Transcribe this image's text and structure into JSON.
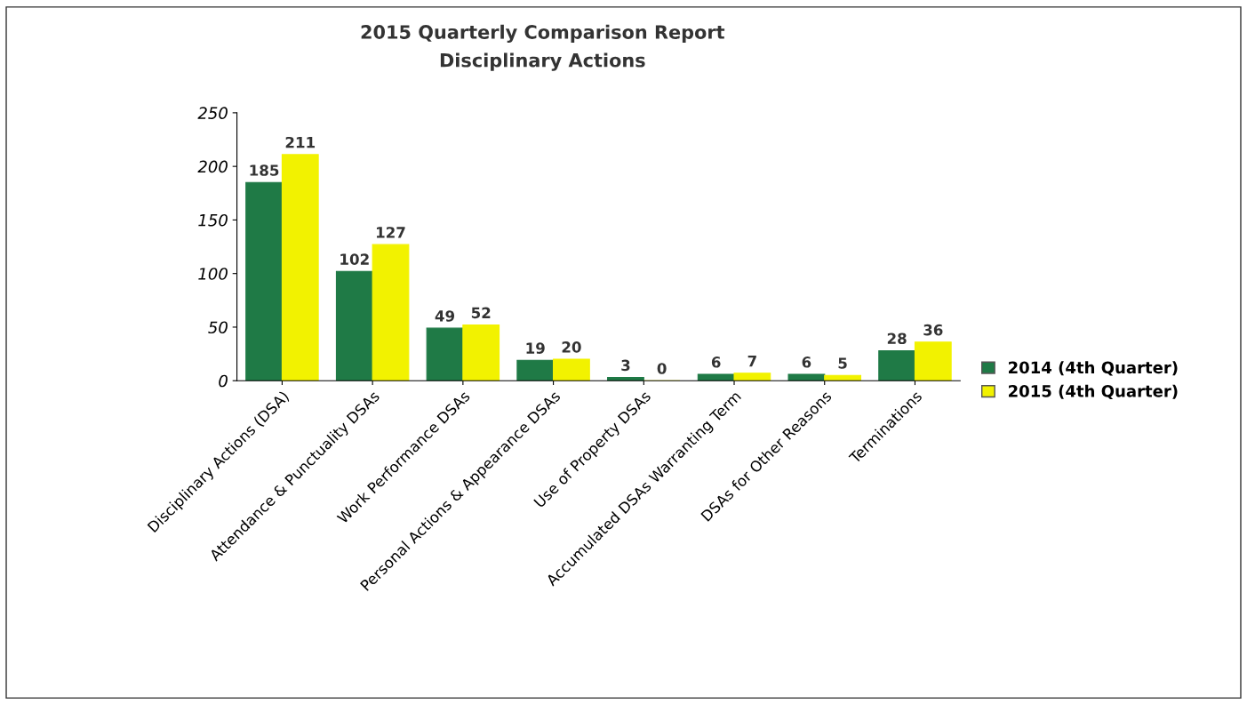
{
  "chart_data": {
    "type": "bar",
    "title": "2015 Quarterly Comparison Report",
    "subtitle": "Disciplinary Actions",
    "categories": [
      "Disciplinary Actions (DSA)",
      "Attendance & Punctuality DSAs",
      "Work Performance DSAs",
      "Personal Actions & Appearance DSAs",
      "Use of Property DSAs",
      "Accumulated DSAs Warranting Term",
      "DSAs for Other Reasons",
      "Terminations"
    ],
    "series": [
      {
        "name": "2014 (4th Quarter)",
        "color": "#1f7a46",
        "values": [
          185,
          102,
          49,
          19,
          3,
          6,
          6,
          28
        ]
      },
      {
        "name": "2015 (4th Quarter)",
        "color": "#f2f200",
        "values": [
          211,
          127,
          52,
          20,
          0,
          7,
          5,
          36
        ]
      }
    ],
    "ylim": [
      0,
      250
    ],
    "yticks": [
      0,
      50,
      100,
      150,
      200,
      250
    ],
    "data_labels": true,
    "legend": "right",
    "grid": false
  }
}
